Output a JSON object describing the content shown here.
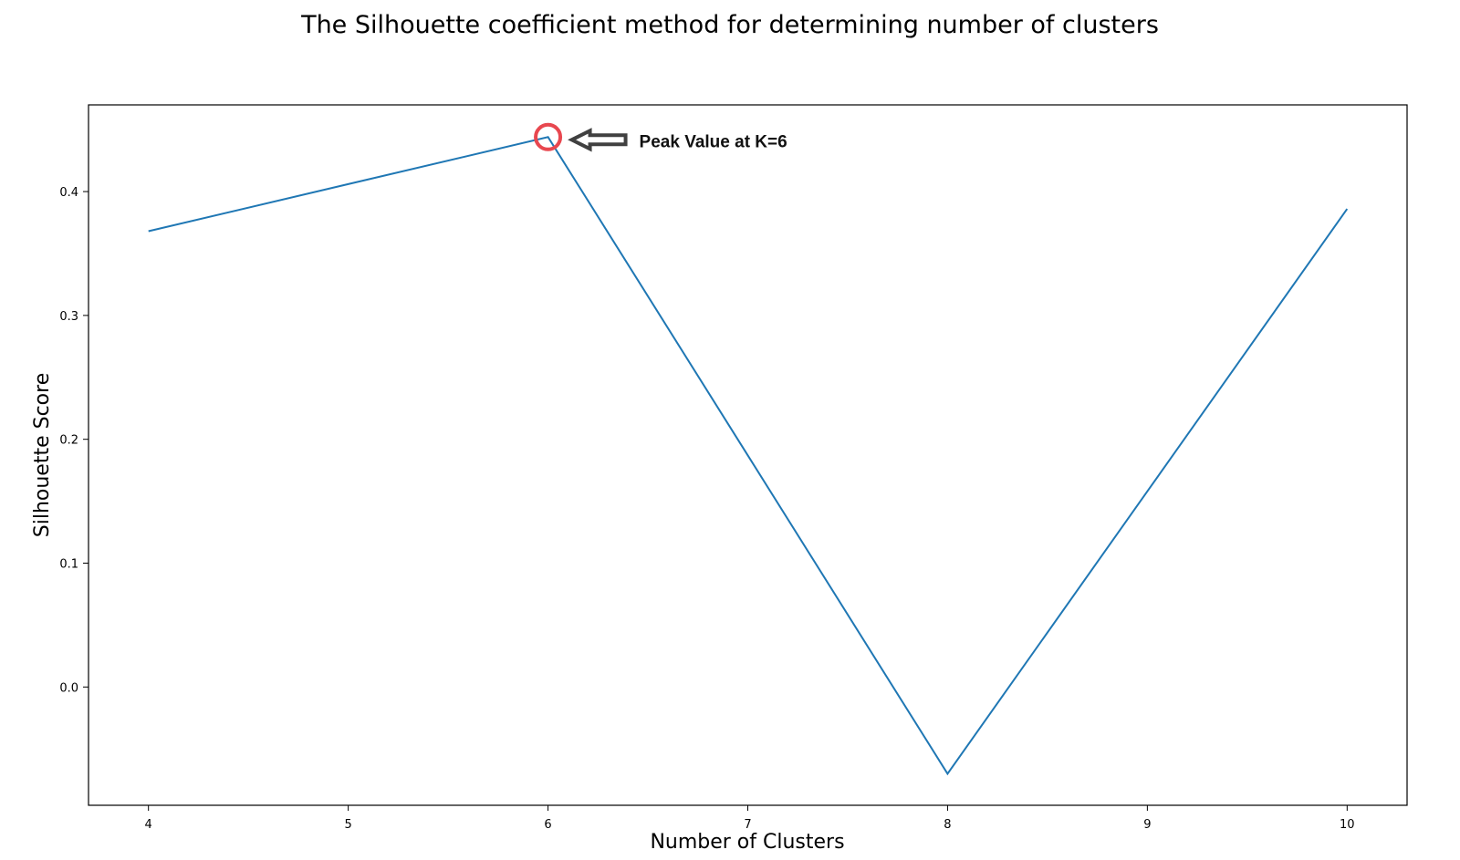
{
  "chart_data": {
    "type": "line",
    "title": "The Silhouette coefficient method for determining number of clusters",
    "xlabel": "Number of Clusters",
    "ylabel": "Silhouette Score",
    "x": [
      4,
      5,
      6,
      7,
      8,
      9,
      10
    ],
    "series": [
      {
        "values": [
          0.368,
          0.406,
          0.444,
          0.187,
          -0.07,
          0.158,
          0.386
        ],
        "color": "#1f77b4"
      }
    ],
    "xticks": [
      "4",
      "5",
      "6",
      "7",
      "8",
      "9",
      "10"
    ],
    "yticks": [
      "0.0",
      "0.1",
      "0.2",
      "0.3",
      "0.4"
    ],
    "xlim": [
      3.7,
      10.3
    ],
    "ylim": [
      -0.0955,
      0.47
    ],
    "grid": false,
    "annotation": {
      "text": "Peak Value at K=6",
      "x": 6,
      "y": 0.444,
      "marker_color": "#e8474f",
      "arrow_color": "#404040"
    }
  }
}
